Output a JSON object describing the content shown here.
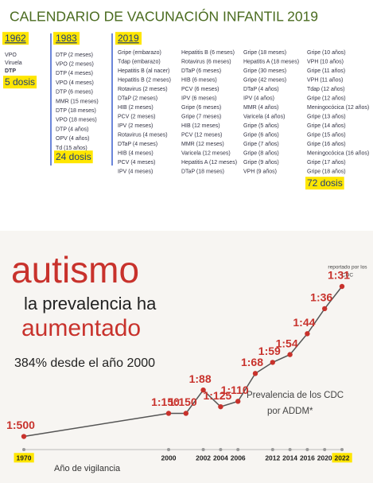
{
  "schedule": {
    "title": "CALENDARIO DE VACUNACIÓN INFANTIL 2019",
    "columns": [
      {
        "year": "1962",
        "items": [
          "VPO",
          "Viruela",
          "DTP"
        ],
        "total": "5 dosis"
      },
      {
        "year": "1983",
        "items": [
          "DTP (2 meses)",
          "VPO (2 meses)",
          "DTP (4 meses)",
          "VPO (4 meses)",
          "DTP (6 meses)",
          "MMR (15 meses)",
          "DTP (18 meses)",
          "VPO (18 meses)",
          "DTP (4 años)",
          "OPV (4 años)",
          "Td (15 años)"
        ],
        "total": "24 dosis"
      },
      {
        "year": "2019",
        "groups": [
          [
            "Gripe (embarazo)",
            "Tdap (embarazo)",
            "Hepatitis B (al nacer)",
            "Hepatitis B (2 meses)",
            "Rotavirus (2 meses)",
            "DTaP (2 meses)",
            "HIB (2 meses)",
            "PCV (2 meses)",
            "IPV (2 meses)",
            "Rotavirus (4 meses)",
            "DTaP (4 meses)",
            "HIB (4 meses)",
            "PCV (4 meses)",
            "IPV (4 meses)"
          ],
          [
            "Hepatitis B (6 meses)",
            "Rotavirus (6 meses)",
            "DTaP (6 meses)",
            "HIB (6 meses)",
            "PCV (6 meses)",
            "IPV (6 meses)",
            "Gripe (6 meses)",
            "Gripe (7 meses)",
            "HIB (12 meses)",
            "PCV (12 meses)",
            "MMR (12 meses)",
            "Varicela (12 meses)",
            "Hepatitis A (12 meses)",
            "DTaP (18 meses)"
          ],
          [
            "Gripe (18 meses)",
            "Hepatitis A (18 meses)",
            "Gripe (30 meses)",
            "Gripe (42 meses)",
            "DTaP (4 años)",
            "IPV (4 años)",
            "MMR (4 años)",
            "Varicela (4 años)",
            "Gripe (5 años)",
            "Gripe (6 años)",
            "Gripe (7 años)",
            "Gripe (8 años)",
            "Gripe (9 años)",
            "VPH (9 años)"
          ],
          [
            "Gripe (10 años)",
            "VPH (10 años)",
            "Gripe (11 años)",
            "VPH (11 años)",
            "Tdap (12 años)",
            "Gripe (12 años)",
            "Meningocócica (12 años)",
            "Gripe (13 años)",
            "Gripe (14 años)",
            "Gripe (15 años)",
            "Gripe (16 años)",
            "Meningocócica (16 años)",
            "Gripe (17 años)",
            "Gripe (18 años)"
          ]
        ],
        "total": "72 dosis"
      }
    ]
  },
  "chart_data": {
    "type": "line",
    "title": [
      "autismo",
      "la prevalencia ha",
      "aumentado"
    ],
    "subtitle": "384% desde el año 2000",
    "annotation": [
      "Prevalencia de los CDC",
      "por ADDM*"
    ],
    "note": [
      "reportado por los",
      "CDC"
    ],
    "xlabel": "Año de vigilancia",
    "categories": [
      "1970",
      "2000",
      null,
      "2002",
      "2004",
      "2006",
      null,
      "2012",
      "2014",
      "2016",
      "2020",
      "2022"
    ],
    "values": [
      500,
      150,
      150,
      88,
      125,
      110,
      68,
      59,
      54,
      44,
      36,
      31
    ],
    "value_labels": [
      "1:500",
      "1:150",
      "1:150",
      "1:88",
      "1:125",
      "1:110",
      "1:68",
      "1:59",
      "1:54",
      "1:44",
      "1:36",
      "1:31"
    ],
    "color": "#c8322c",
    "line_color": "#555555"
  }
}
